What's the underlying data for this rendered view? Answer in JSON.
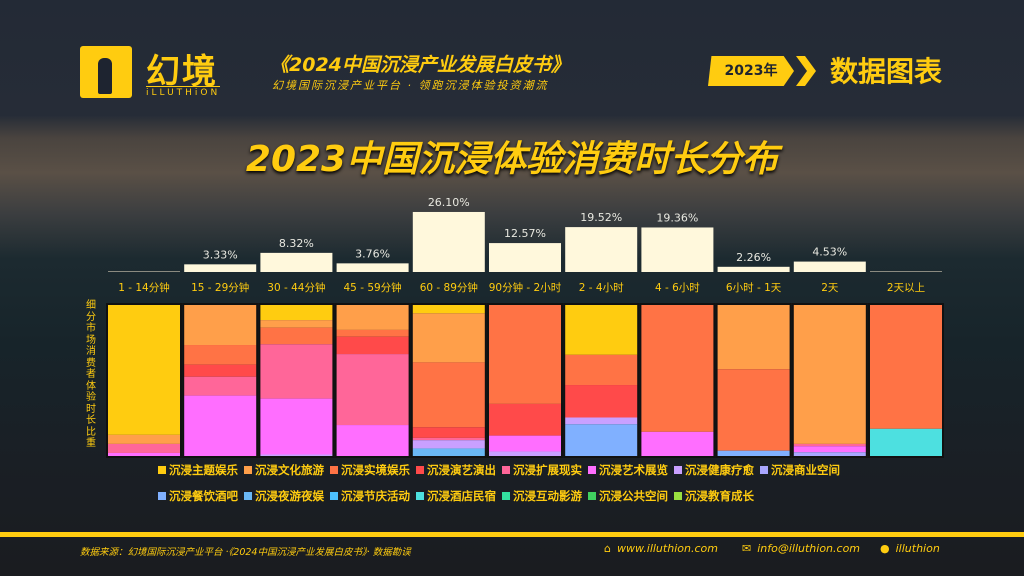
{
  "header": {
    "logo_cn": "幻境",
    "logo_en": "iLLUTHiON",
    "book_title": "《2024中国沉浸产业发展白皮书》",
    "book_subtitle": "幻境国际沉浸产业平台 · 领跑沉浸体验投资潮流",
    "year": "2023年",
    "section": "数据图表"
  },
  "footer": {
    "source": "数据来源：幻境国际沉浸产业平台 ·《2024中国沉浸产业发展白皮书》· 数据勘误",
    "website": "www.illuthion.com",
    "email": "info@illuthion.com",
    "wechat": "illuthion"
  },
  "chart_data": {
    "type": "bar",
    "title": "2023中国沉浸体验消费时长分布",
    "categories": [
      "1 - 14分钟",
      "15 - 29分钟",
      "30 - 44分钟",
      "45 - 59分钟",
      "60 - 89分钟",
      "90分钟 - 2小时",
      "2 - 4小时",
      "4 - 6小时",
      "6小时 - 1天",
      "2天",
      "2天以上"
    ],
    "values": [
      0.0,
      3.33,
      8.32,
      3.76,
      26.1,
      12.57,
      19.52,
      19.36,
      2.26,
      4.53,
      0.0
    ],
    "value_labels": [
      "",
      "3.33%",
      "8.32%",
      "3.76%",
      "26.10%",
      "12.57%",
      "19.52%",
      "19.36%",
      "2.26%",
      "4.53%",
      ""
    ],
    "stack_ylabel": "细分市场消费者体验时长比重",
    "stack_series": [
      {
        "name": "沉浸主题娱乐",
        "color": "#ffcc10",
        "values": [
          86,
          0,
          10,
          0,
          5.5,
          0,
          33,
          0,
          0,
          0,
          0
        ]
      },
      {
        "name": "沉浸文化旅游",
        "color": "#ff9f4a",
        "values": [
          6,
          26.5,
          5,
          16.5,
          32.5,
          0,
          0,
          0,
          42.5,
          92,
          0
        ]
      },
      {
        "name": "沉浸实境娱乐",
        "color": "#ff7345",
        "values": [
          0,
          13,
          11,
          4.5,
          43,
          65.5,
          20,
          84,
          54,
          0,
          82
        ]
      },
      {
        "name": "沉浸演艺演出",
        "color": "#ff4a4a",
        "values": [
          0,
          8,
          0,
          11.5,
          7,
          21,
          21.5,
          0,
          0,
          0,
          0
        ]
      },
      {
        "name": "沉浸扩展现实",
        "color": "#ff6699",
        "values": [
          6,
          12.5,
          36,
          47,
          1.5,
          0,
          0,
          0,
          0,
          1.5,
          0
        ]
      },
      {
        "name": "沉浸艺术展览",
        "color": "#ff6eff",
        "values": [
          2,
          40,
          37,
          20.5,
          0,
          10.5,
          0,
          16,
          0,
          4,
          0
        ]
      },
      {
        "name": "沉浸健康疗愈",
        "color": "#c9a0ff",
        "values": [
          0,
          0,
          1,
          0,
          5.5,
          3,
          4.5,
          0,
          0,
          0,
          0
        ]
      },
      {
        "name": "沉浸商业空间",
        "color": "#a9a6ff",
        "values": [
          0,
          0,
          0,
          0,
          0,
          0,
          0,
          0,
          0,
          2.5,
          0
        ]
      },
      {
        "name": "沉浸餐饮酒吧",
        "color": "#80b0ff",
        "values": [
          0,
          0,
          0,
          0,
          0,
          0,
          21,
          0,
          3.5,
          0,
          0
        ]
      },
      {
        "name": "沉浸夜游夜娱",
        "color": "#6ab8f5",
        "values": [
          0,
          0,
          0,
          0,
          5,
          0,
          0,
          0,
          0,
          0,
          0
        ]
      },
      {
        "name": "沉浸节庆活动",
        "color": "#4cc0ff",
        "values": [
          0,
          0,
          0,
          0,
          0,
          0,
          0,
          0,
          0,
          0,
          0
        ]
      },
      {
        "name": "沉浸酒店民宿",
        "color": "#4de0e0",
        "values": [
          0,
          0,
          0,
          0,
          0,
          0,
          0,
          0,
          0,
          0,
          18
        ]
      },
      {
        "name": "沉浸互动影游",
        "color": "#33e0a0",
        "values": [
          0,
          0,
          0,
          0,
          0,
          0,
          0,
          0,
          0,
          0,
          0
        ]
      },
      {
        "name": "沉浸公共空间",
        "color": "#40d060",
        "values": [
          0,
          0,
          0,
          0,
          0,
          0,
          0,
          0,
          0,
          0,
          0
        ]
      },
      {
        "name": "沉浸教育成长",
        "color": "#99e040",
        "values": [
          0,
          0,
          0,
          0,
          0,
          0,
          0,
          0,
          0,
          0,
          0
        ]
      }
    ]
  }
}
